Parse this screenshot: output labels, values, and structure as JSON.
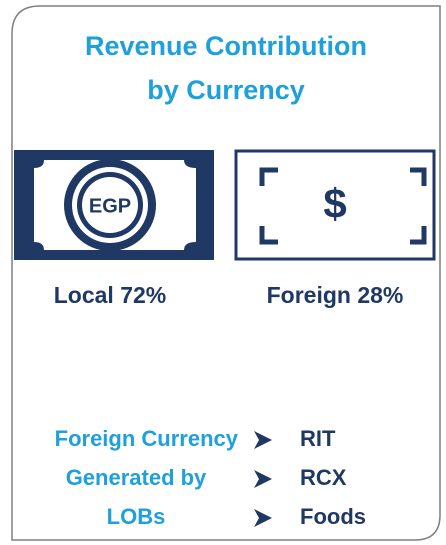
{
  "title": [
    "Revenue Contribution",
    "by Currency"
  ],
  "currencies": [
    {
      "symbol": "EGP",
      "label": "Local 72%"
    },
    {
      "symbol": "$",
      "label": "Foreign 28%"
    }
  ],
  "lob_heading": [
    "Foreign Currency",
    "Generated by",
    "LOBs"
  ],
  "lobs": [
    "RIT",
    "RCX",
    "Foods"
  ]
}
